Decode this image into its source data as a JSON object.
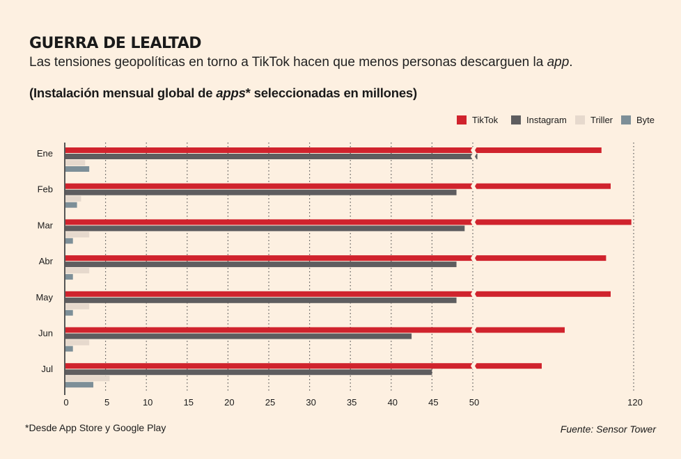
{
  "header": {
    "title": "GUERRA DE LEALTAD",
    "subtitle_main": "Las tensiones geopolíticas en torno a TikTok hacen que menos personas descarguen la ",
    "subtitle_em": "app",
    "subtitle_end": ".",
    "chart_heading_pre": "(Instalación mensual global de ",
    "chart_heading_em": "apps",
    "chart_heading_post": "* seleccionadas en millones)"
  },
  "footer": {
    "footnote": "*Desde App Store y Google Play",
    "source": "Fuente: Sensor Tower"
  },
  "chart_data": {
    "type": "bar",
    "orientation": "horizontal",
    "categories": [
      "Ene",
      "Feb",
      "Mar",
      "Abr",
      "May",
      "Jun",
      "Jul"
    ],
    "series": [
      {
        "name": "TikTok",
        "color": "#d0232d",
        "values": [
          106,
          110,
          119,
          108,
          110,
          90,
          80
        ]
      },
      {
        "name": "Instagram",
        "color": "#5e5d5f",
        "values": [
          52,
          48,
          49,
          48,
          48,
          42.5,
          45
        ]
      },
      {
        "name": "Triller",
        "color": "#e6d9cd",
        "values": [
          2.5,
          2,
          3,
          3,
          3,
          3,
          5.5
        ]
      },
      {
        "name": "Byte",
        "color": "#7d8f98",
        "values": [
          3,
          1.5,
          1,
          1,
          1,
          1,
          3.5
        ]
      }
    ],
    "x_axis_break": {
      "from": 50,
      "to": 120
    },
    "xticks": [
      "0",
      "5",
      "10",
      "15",
      "20",
      "25",
      "30",
      "35",
      "40",
      "45",
      "50",
      "120"
    ],
    "xlim": [
      0,
      120
    ],
    "grid": "vertical dotted",
    "legend_position": "top-right"
  }
}
